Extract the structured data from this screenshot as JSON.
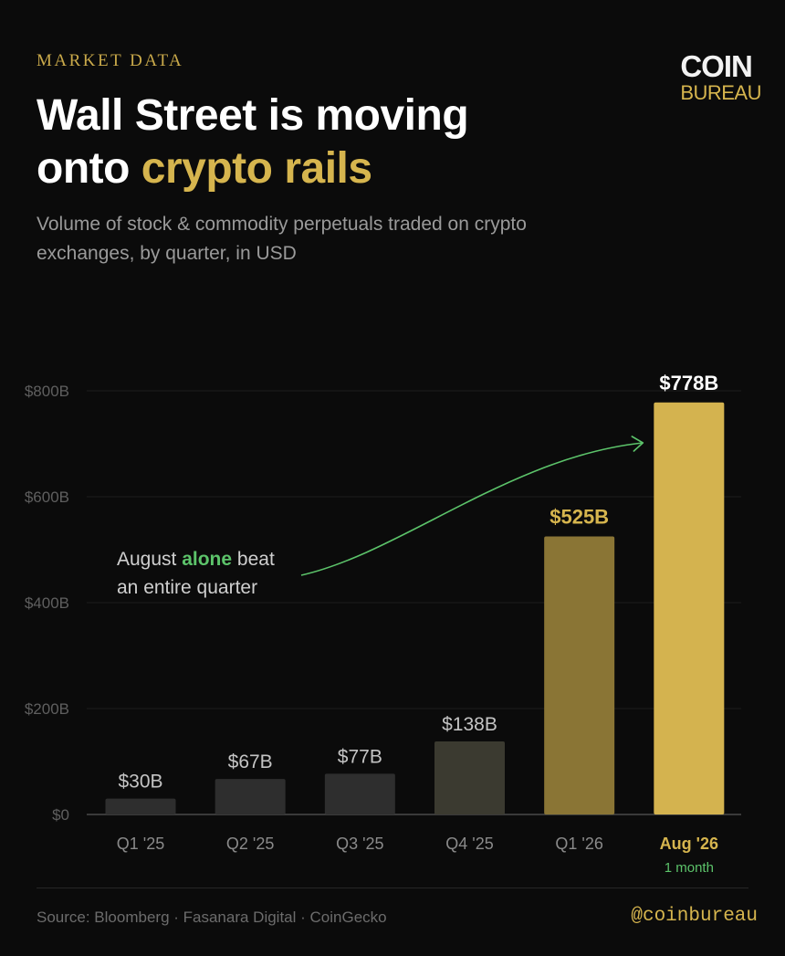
{
  "header": {
    "eyebrow": "MARKET DATA",
    "title_line1": "Wall Street is moving",
    "title_line2_plain": "onto ",
    "title_line2_accent": "crypto rails",
    "subtitle": "Volume of stock & commodity perpetuals traded on crypto exchanges, by quarter, in USD"
  },
  "logo": {
    "line1": "COIN",
    "line2": "BUREAU"
  },
  "footer": {
    "source": "Source: Bloomberg · Fasanara Digital · CoinGecko",
    "handle": "@coinbureau"
  },
  "colors": {
    "background": "#0b0b0b",
    "accent_gold": "#d6b54e",
    "annotation_green": "#5cc36a",
    "bar_dark": "#2e2e2e"
  },
  "chart_data": {
    "type": "bar",
    "categories": [
      "Q1 '25",
      "Q2 '25",
      "Q3 '25",
      "Q4 '25",
      "Q1 '26",
      "Aug '26"
    ],
    "values": [
      30,
      67,
      77,
      138,
      525,
      778
    ],
    "value_labels": [
      "$30B",
      "$67B",
      "$77B",
      "$138B",
      "$525B",
      "$778B"
    ],
    "bar_colors": [
      "#2e2e2e",
      "#2e2e2e",
      "#2e2e2e",
      "#3b3a30",
      "#8a7535",
      "#d4b34f"
    ],
    "value_label_colors": [
      "#c4c4c4",
      "#c4c4c4",
      "#c4c4c4",
      "#c4c4c4",
      "#d6b54e",
      "#ffffff"
    ],
    "highlight_category": "Aug '26",
    "category_notes": {
      "Aug '26": "1 month"
    },
    "ylim": [
      0,
      800
    ],
    "yticks": [
      0,
      200,
      400,
      600,
      800
    ],
    "ytick_labels": [
      "$0",
      "$200B",
      "$400B",
      "$600B",
      "$800B"
    ],
    "grid": true,
    "annotation": {
      "text_before": "August ",
      "text_highlight": "alone",
      "text_after": " beat",
      "text_line2": "an entire quarter",
      "arrow_target_category": "Aug '26"
    }
  }
}
